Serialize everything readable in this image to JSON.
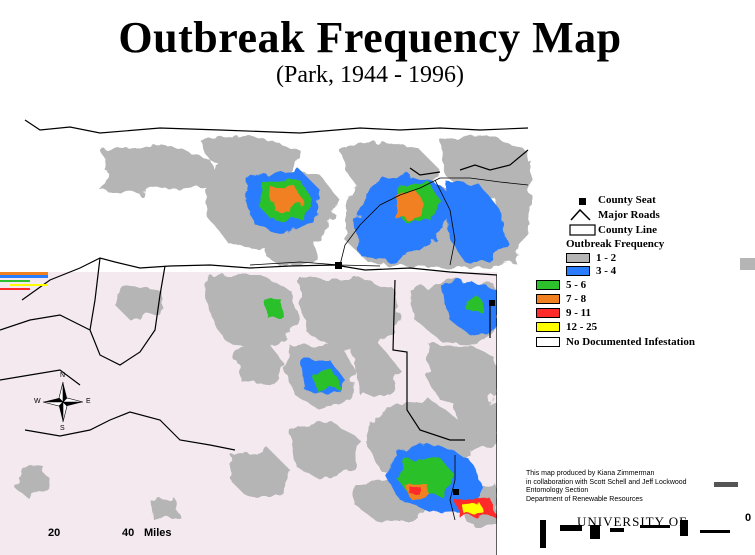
{
  "title": "Outbreak Frequency Map",
  "subtitle": "(Park, 1944 - 1996)",
  "legend": {
    "county_seat": "County Seat",
    "major_roads": "Major Roads",
    "county_line": "County Line",
    "heading": "Outbreak Frequency",
    "classes": [
      {
        "label": "1 - 2",
        "color": "#b5b5b5"
      },
      {
        "label": "3 - 4",
        "color": "#2a7cff"
      },
      {
        "label": "5 - 6",
        "color": "#2cc02c"
      },
      {
        "label": "7 - 8",
        "color": "#f08020"
      },
      {
        "label": "9 - 11",
        "color": "#ff2a2a"
      },
      {
        "label": "12 - 25",
        "color": "#ffff00"
      },
      {
        "label": "No Documented Infestation",
        "color": "#ffffff"
      }
    ]
  },
  "credits": [
    "This map produced by Kiana Zimmerman",
    "in collaboration with Scott Schell and Jeff Lockwood",
    "Entomology Section",
    "Department of Renewable Resources"
  ],
  "institution": "UNIVERSITY OF",
  "north_arrow": {
    "n": "N",
    "s": "S",
    "e": "E",
    "w": "W"
  },
  "scale_bar": {
    "labels": [
      "0",
      "20",
      "40"
    ],
    "unit": "Miles"
  },
  "colors": {
    "infested_low": "#b5b5b5",
    "pink_band": "#f2e8ee",
    "blue": "#2a7cff",
    "green": "#2cc02c",
    "orange": "#f08020",
    "red": "#ff2a2a",
    "yellow": "#ffff00"
  }
}
